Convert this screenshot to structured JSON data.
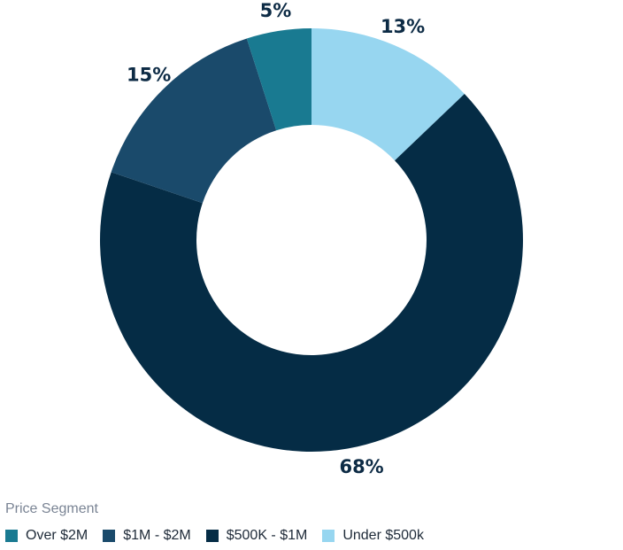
{
  "chart_data": {
    "type": "pie",
    "variant": "donut",
    "legend_title": "Price Segment",
    "legend_position": "bottom-left",
    "slices": [
      {
        "name": "Under $500k",
        "value": 13,
        "label": "13%",
        "color": "#97d6f0"
      },
      {
        "name": "$500K - $1M",
        "value": 68,
        "label": "68%",
        "color": "#052c45"
      },
      {
        "name": "$1M - $2M",
        "value": 15,
        "label": "15%",
        "color": "#1a4a6b"
      },
      {
        "name": "Over $2M",
        "value": 5,
        "label": "5%",
        "color": "#197a91"
      }
    ],
    "legend_order": [
      "Over $2M",
      "$1M - $2M",
      "$500K - $1M",
      "Under $500k"
    ]
  }
}
